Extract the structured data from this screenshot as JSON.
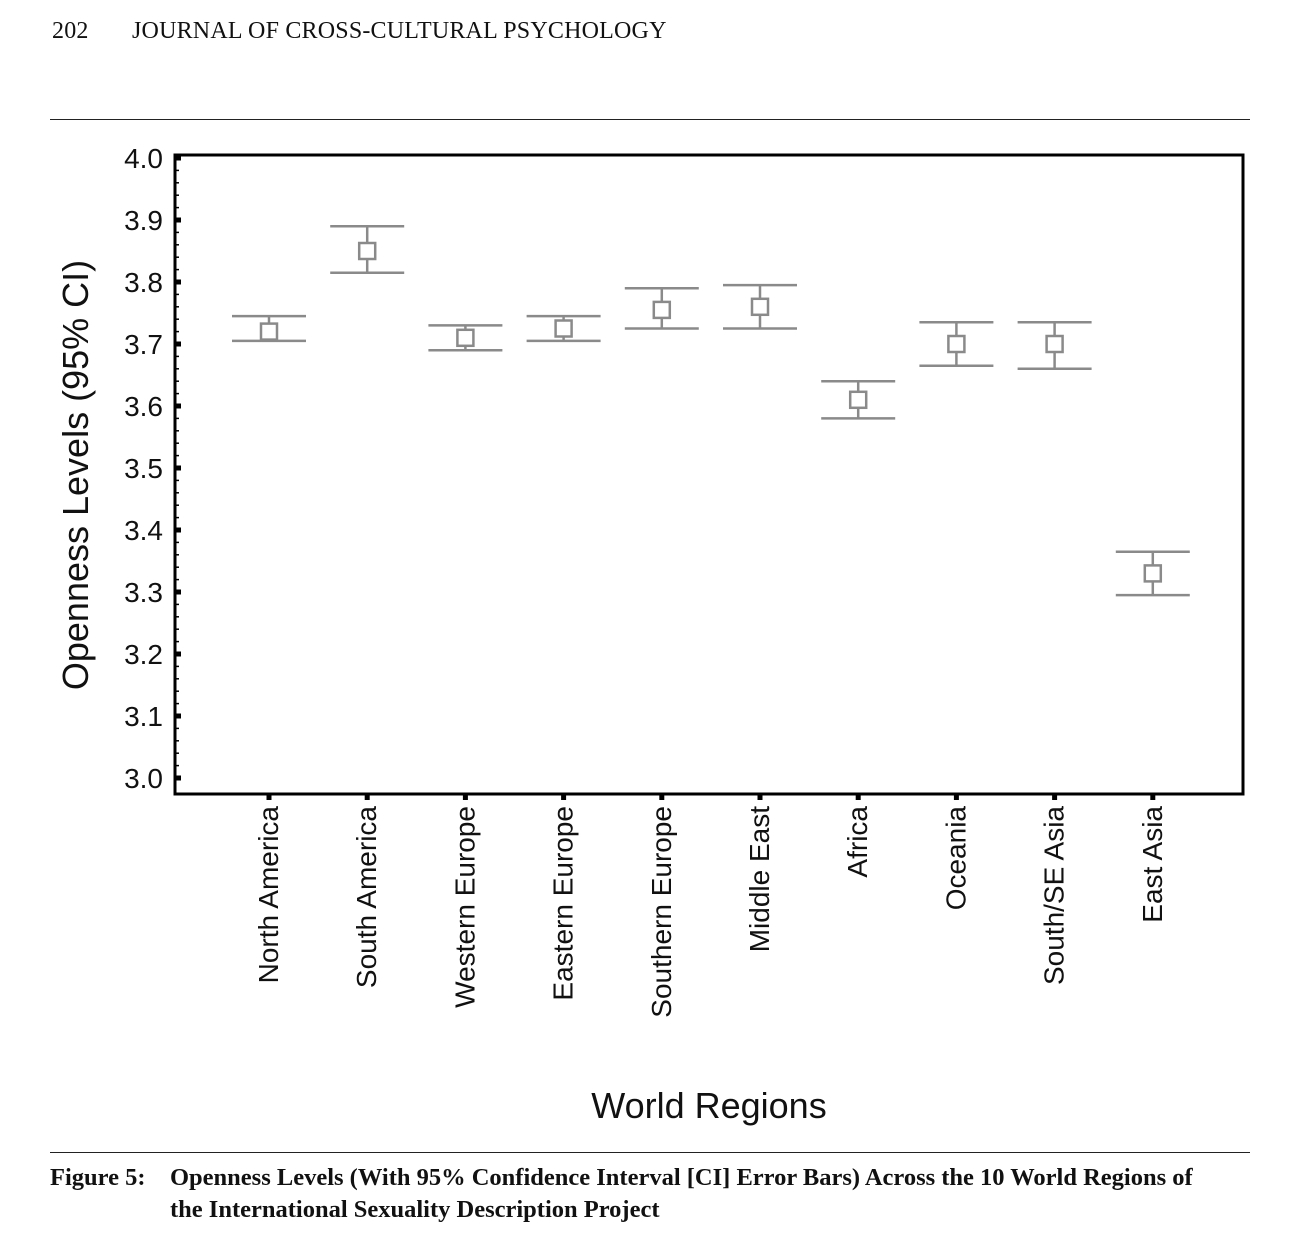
{
  "header": {
    "page_number": "202",
    "journal_title": "JOURNAL OF CROSS-CULTURAL PSYCHOLOGY"
  },
  "chart_data": {
    "type": "scatter",
    "style": "error-bars",
    "ylabel": "Openness Levels (95% CI)",
    "xlabel": "World Regions",
    "ylim": [
      3.0,
      4.0
    ],
    "y_ticks": [
      "3.0",
      "3.1",
      "3.2",
      "3.3",
      "3.4",
      "3.5",
      "3.6",
      "3.7",
      "3.8",
      "3.9",
      "4.0"
    ],
    "categories": [
      "North America",
      "South America",
      "Western Europe",
      "Eastern Europe",
      "Southern Europe",
      "Middle East",
      "Africa",
      "Oceania",
      "South/SE Asia",
      "East Asia"
    ],
    "means": [
      3.72,
      3.85,
      3.71,
      3.725,
      3.755,
      3.76,
      3.61,
      3.7,
      3.7,
      3.33
    ],
    "ci_lower": [
      3.705,
      3.815,
      3.69,
      3.705,
      3.725,
      3.725,
      3.58,
      3.665,
      3.66,
      3.295
    ],
    "ci_upper": [
      3.745,
      3.89,
      3.73,
      3.745,
      3.79,
      3.795,
      3.64,
      3.735,
      3.735,
      3.365
    ],
    "colors": {
      "marker": "#8a8a8a",
      "axis": "#000000"
    }
  },
  "caption": {
    "label": "Figure 5:",
    "text": "Openness Levels (With 95% Confidence Interval [CI] Error Bars) Across the 10 World Regions of the International Sexuality Description Project"
  }
}
